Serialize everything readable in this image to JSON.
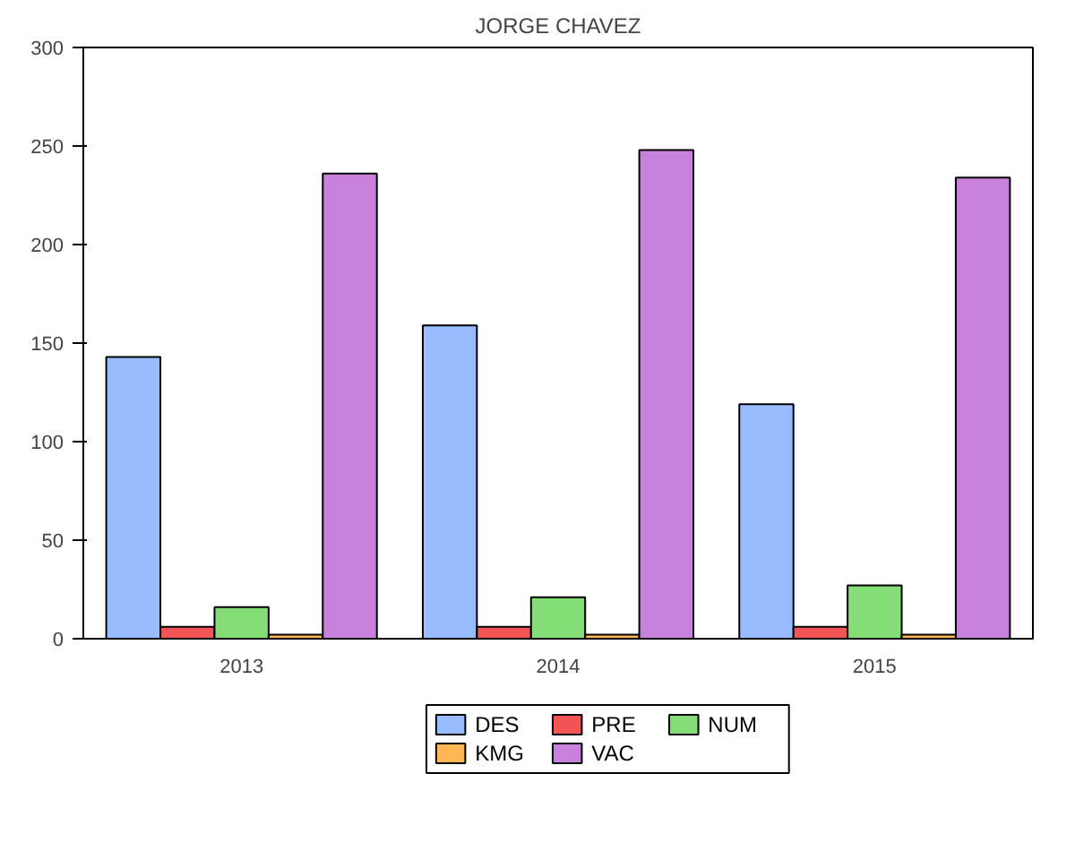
{
  "chart_data": {
    "type": "bar",
    "title": "JORGE CHAVEZ",
    "categories": [
      "2013",
      "2014",
      "2015"
    ],
    "series": [
      {
        "name": "DES",
        "color": "#99bbff",
        "values": [
          143,
          159,
          119
        ]
      },
      {
        "name": "PRE",
        "color": "#f25555",
        "values": [
          6,
          6,
          6
        ]
      },
      {
        "name": "NUM",
        "color": "#85dd77",
        "values": [
          16,
          21,
          27
        ]
      },
      {
        "name": "KMG",
        "color": "#ffb655",
        "values": [
          2,
          2,
          2
        ]
      },
      {
        "name": "VAC",
        "color": "#c880dd",
        "values": [
          236,
          248,
          234
        ]
      }
    ],
    "ylim": [
      0,
      300
    ],
    "yticks": [
      0,
      50,
      100,
      150,
      200,
      250,
      300
    ],
    "grid": false,
    "legend": "bottom"
  }
}
